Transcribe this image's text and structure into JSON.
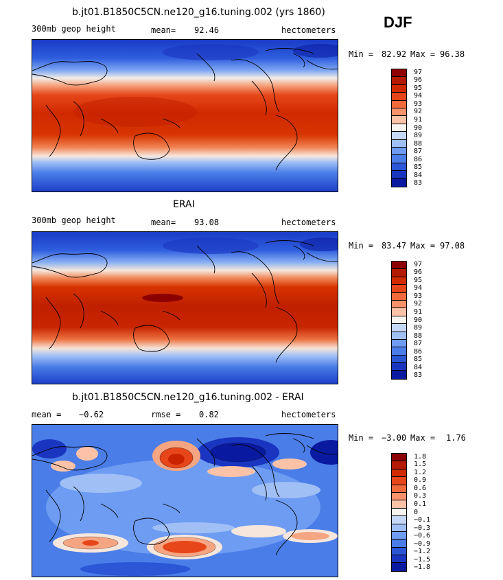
{
  "season": "DJF",
  "panels": [
    {
      "title": "b.jt01.B1850C5CN.ne120_g16.tuning.002 (yrs 1860)",
      "left_label": "300mb geop height",
      "center_label": "mean=",
      "center_value": "92.46",
      "right_label": "hectometers",
      "minmax_min_label": "Min =",
      "minmax_min": "82.92",
      "minmax_max_label": "Max =",
      "minmax_max": "96.38",
      "colorbar": {
        "colors": [
          "#8c0000",
          "#b41a00",
          "#d02a00",
          "#e6461a",
          "#f06a3c",
          "#f7926a",
          "#fcc2a8",
          "#f7f3ee",
          "#c5d8f7",
          "#9fbff5",
          "#6e9cf2",
          "#4a7de8",
          "#2b56d6",
          "#1a35c0",
          "#0a1aa0"
        ],
        "labels": [
          "97",
          "96",
          "95",
          "94",
          "93",
          "92",
          "91",
          "90",
          "89",
          "88",
          "87",
          "86",
          "85",
          "84",
          "83"
        ]
      }
    },
    {
      "title": "ERAI",
      "left_label": "300mb geop height",
      "center_label": "mean=",
      "center_value": "93.08",
      "right_label": "hectometers",
      "minmax_min_label": "Min =",
      "minmax_min": "83.47",
      "minmax_max_label": "Max =",
      "minmax_max": "97.08",
      "colorbar": {
        "colors": [
          "#8c0000",
          "#b41a00",
          "#d02a00",
          "#e6461a",
          "#f06a3c",
          "#f7926a",
          "#fcc2a8",
          "#f7f3ee",
          "#c5d8f7",
          "#9fbff5",
          "#6e9cf2",
          "#4a7de8",
          "#2b56d6",
          "#1a35c0",
          "#0a1aa0"
        ],
        "labels": [
          "97",
          "96",
          "95",
          "94",
          "93",
          "92",
          "91",
          "90",
          "89",
          "88",
          "87",
          "86",
          "85",
          "84",
          "83"
        ]
      }
    },
    {
      "title": "b.jt01.B1850C5CN.ne120_g16.tuning.002 - ERAI",
      "left_label": "mean =",
      "left_value": "−0.62",
      "center_label": "rmse =",
      "center_value": "0.82",
      "right_label": "hectometers",
      "minmax_min_label": "Min =",
      "minmax_min": "−3.00",
      "minmax_max_label": "Max =",
      "minmax_max": "1.76",
      "colorbar": {
        "colors": [
          "#8c0000",
          "#b41a00",
          "#d02a00",
          "#e6461a",
          "#f06a3c",
          "#f7926a",
          "#fcc2a8",
          "#f7f3ee",
          "#c5d8f7",
          "#9fbff5",
          "#6e9cf2",
          "#4a7de8",
          "#2b56d6",
          "#1a35c0",
          "#0a1aa0"
        ],
        "labels": [
          "1.8",
          "1.5",
          "1.2",
          "0.9",
          "0.6",
          "0.3",
          "0.1",
          "0",
          "−0.1",
          "−0.3",
          "−0.6",
          "−0.9",
          "−1.2",
          "−1.5",
          "−1.8"
        ]
      }
    }
  ]
}
